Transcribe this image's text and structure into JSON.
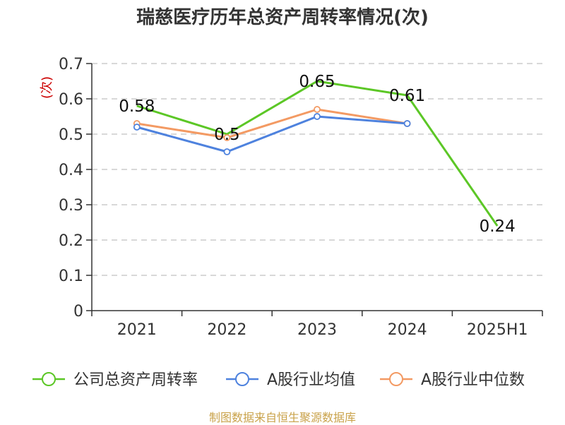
{
  "chart_data": {
    "type": "line",
    "title": "瑞慈医疗历年总资产周转率情况(次)",
    "ylabel": "(次)",
    "xlabel": "",
    "categories": [
      "2021",
      "2022",
      "2023",
      "2024",
      "2025H1"
    ],
    "ylim": [
      0,
      0.7
    ],
    "yticks": [
      "0",
      "0.1",
      "0.2",
      "0.3",
      "0.4",
      "0.5",
      "0.6",
      "0.7"
    ],
    "series": [
      {
        "name": "公司总资产周转率",
        "color": "#5cc726",
        "values": [
          0.58,
          0.5,
          0.65,
          0.61,
          0.24
        ],
        "labels": [
          "0.58",
          "0.5",
          "0.65",
          "0.61",
          "0.24"
        ]
      },
      {
        "name": "A股行业均值",
        "color": "#4e82de",
        "values": [
          0.52,
          0.45,
          0.55,
          0.53,
          null
        ]
      },
      {
        "name": "A股行业中位数",
        "color": "#f39a63",
        "values": [
          0.53,
          0.49,
          0.57,
          0.53,
          null
        ]
      }
    ],
    "grid": true,
    "legend": "bottom"
  },
  "source": "制图数据来自恒生聚源数据库",
  "colors": {
    "axis": "#333333",
    "grid": "#cccccc",
    "source": "#c9a24a",
    "ylabel": "#cc0000"
  }
}
